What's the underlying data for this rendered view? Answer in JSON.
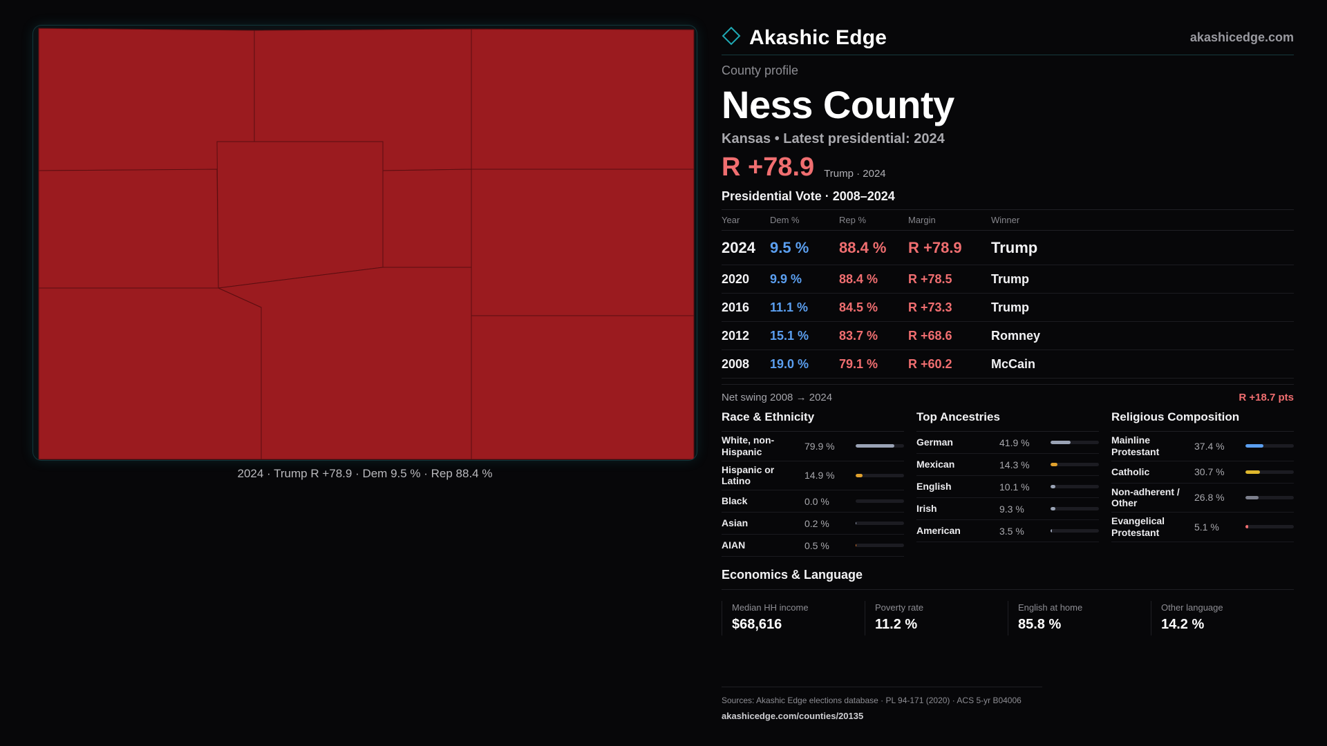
{
  "map": {
    "caption": "2024 · Trump R +78.9 · Dem 9.5 % · Rep 88.4 %",
    "fill_color": "#9b1b1f",
    "stroke_color": "#5a0e11"
  },
  "header": {
    "brand": "Akashic Edge",
    "site": "akashicedge.com",
    "kicker": "County profile",
    "county": "Ness County",
    "subline": "Kansas • Latest presidential: 2024",
    "margin": "R +78.9",
    "margin_note": "Trump · 2024"
  },
  "votes": {
    "title": "Presidential Vote · 2008–2024",
    "columns": [
      "Year",
      "Dem %",
      "Rep %",
      "Margin",
      "Winner"
    ],
    "rows": [
      {
        "year": "2024",
        "dem": "9.5 %",
        "rep": "88.4 %",
        "margin": "R +78.9",
        "winner": "Trump"
      },
      {
        "year": "2020",
        "dem": "9.9 %",
        "rep": "88.4 %",
        "margin": "R +78.5",
        "winner": "Trump"
      },
      {
        "year": "2016",
        "dem": "11.1 %",
        "rep": "84.5 %",
        "margin": "R +73.3",
        "winner": "Trump"
      },
      {
        "year": "2012",
        "dem": "15.1 %",
        "rep": "83.7 %",
        "margin": "R +68.6",
        "winner": "Romney"
      },
      {
        "year": "2008",
        "dem": "19.0 %",
        "rep": "79.1 %",
        "margin": "R +60.2",
        "winner": "McCain"
      }
    ],
    "swing_label": "Net swing 2008 → 2024",
    "swing_value": "R +18.7 pts"
  },
  "race": {
    "title": "Race & Ethnicity",
    "items": [
      {
        "label": "White, non-Hispanic",
        "value": "79.9 %",
        "pct": 79.9,
        "color": "#9aa3b5"
      },
      {
        "label": "Hispanic or Latino",
        "value": "14.9 %",
        "pct": 14.9,
        "color": "#e0a12d"
      },
      {
        "label": "Black",
        "value": "0.0 %",
        "pct": 0.0,
        "color": "#9aa3b5"
      },
      {
        "label": "Asian",
        "value": "0.2 %",
        "pct": 0.2,
        "color": "#9aa3b5"
      },
      {
        "label": "AIAN",
        "value": "0.5 %",
        "pct": 0.5,
        "color": "#e0782d"
      }
    ]
  },
  "ancestry": {
    "title": "Top Ancestries",
    "items": [
      {
        "label": "German",
        "value": "41.9 %",
        "pct": 41.9,
        "color": "#9aa3b5"
      },
      {
        "label": "Mexican",
        "value": "14.3 %",
        "pct": 14.3,
        "color": "#e0a12d"
      },
      {
        "label": "English",
        "value": "10.1 %",
        "pct": 10.1,
        "color": "#9aa3b5"
      },
      {
        "label": "Irish",
        "value": "9.3 %",
        "pct": 9.3,
        "color": "#9aa3b5"
      },
      {
        "label": "American",
        "value": "3.5 %",
        "pct": 3.5,
        "color": "#9aa3b5"
      }
    ]
  },
  "religion": {
    "title": "Religious Composition",
    "items": [
      {
        "label": "Mainline Protestant",
        "value": "37.4 %",
        "pct": 37.4,
        "color": "#5b9ff0"
      },
      {
        "label": "Catholic",
        "value": "30.7 %",
        "pct": 30.7,
        "color": "#e0b82d"
      },
      {
        "label": "Non-adherent / Other",
        "value": "26.8 %",
        "pct": 26.8,
        "color": "#7c7f8c"
      },
      {
        "label": "Evangelical Protestant",
        "value": "5.1 %",
        "pct": 5.1,
        "color": "#f06e70"
      }
    ]
  },
  "economics": {
    "title": "Economics & Language",
    "cells": [
      {
        "label": "Median HH income",
        "value": "$68,616"
      },
      {
        "label": "Poverty rate",
        "value": "11.2 %"
      },
      {
        "label": "English at home",
        "value": "85.8 %"
      },
      {
        "label": "Other language",
        "value": "14.2 %"
      }
    ]
  },
  "footer": {
    "sources": "Sources: Akashic Edge elections database · PL 94-171 (2020) · ACS 5-yr B04006",
    "url": "akashicedge.com/counties/20135"
  }
}
